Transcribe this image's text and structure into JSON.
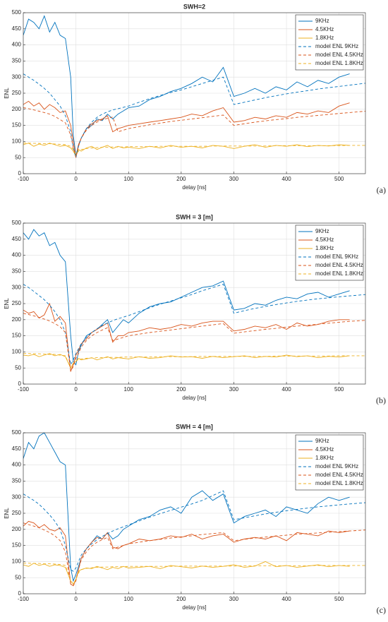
{
  "chart_data": [
    {
      "type": "line",
      "title": "SWH=2",
      "xlabel": "delay [ns]",
      "ylabel": "ENL",
      "panel_label": "(a)",
      "grid": true,
      "legend": "northeast",
      "xlim": [
        -100,
        550
      ],
      "ylim": [
        0,
        500
      ],
      "xticks": [
        -100,
        0,
        100,
        200,
        300,
        400,
        500
      ],
      "yticks": [
        0,
        50,
        100,
        150,
        200,
        250,
        300,
        350,
        400,
        450,
        500
      ],
      "x": [
        -100,
        -90,
        -80,
        -70,
        -60,
        -50,
        -40,
        -30,
        -20,
        -10,
        -5,
        0,
        5,
        10,
        20,
        30,
        40,
        50,
        60,
        70,
        80,
        90,
        100,
        120,
        140,
        160,
        180,
        200,
        220,
        240,
        260,
        280,
        300,
        320,
        340,
        360,
        380,
        400,
        420,
        440,
        460,
        480,
        500,
        520,
        550
      ],
      "series": [
        {
          "name": "9KHz",
          "color": "#0072bd",
          "dashed": false,
          "values": [
            430,
            480,
            470,
            450,
            490,
            440,
            470,
            430,
            420,
            300,
            120,
            55,
            90,
            110,
            140,
            150,
            170,
            165,
            185,
            170,
            185,
            195,
            205,
            210,
            230,
            240,
            255,
            265,
            280,
            300,
            285,
            330,
            240,
            250,
            265,
            250,
            270,
            260,
            285,
            270,
            290,
            280,
            300,
            310,
            null
          ]
        },
        {
          "name": "4.5KHz",
          "color": "#d95319",
          "dashed": false,
          "values": [
            215,
            225,
            210,
            220,
            200,
            215,
            205,
            190,
            195,
            150,
            100,
            50,
            90,
            110,
            140,
            155,
            165,
            170,
            180,
            130,
            140,
            145,
            150,
            155,
            160,
            165,
            170,
            175,
            185,
            180,
            195,
            205,
            160,
            165,
            175,
            170,
            180,
            175,
            190,
            185,
            195,
            190,
            210,
            220,
            null
          ]
        },
        {
          "name": "1.8KHz",
          "color": "#edb120",
          "dashed": false,
          "values": [
            90,
            95,
            85,
            92,
            88,
            95,
            90,
            85,
            88,
            80,
            70,
            55,
            75,
            70,
            80,
            85,
            75,
            82,
            88,
            78,
            85,
            80,
            82,
            78,
            85,
            80,
            88,
            82,
            85,
            80,
            88,
            85,
            78,
            85,
            90,
            82,
            88,
            85,
            90,
            84,
            88,
            86,
            90,
            88,
            null
          ]
        },
        {
          "name": "model ENL 9KHz",
          "color": "#0072bd",
          "dashed": true,
          "values": [
            310,
            300,
            290,
            278,
            265,
            250,
            230,
            210,
            180,
            130,
            80,
            50,
            85,
            110,
            140,
            160,
            175,
            185,
            192,
            198,
            202,
            206,
            210,
            222,
            233,
            243,
            252,
            260,
            270,
            280,
            290,
            300,
            215,
            222,
            229,
            236,
            242,
            248,
            253,
            258,
            263,
            267,
            271,
            275,
            281
          ]
        },
        {
          "name": "model ENL 4.5KHz",
          "color": "#d95319",
          "dashed": true,
          "values": [
            205,
            202,
            198,
            194,
            190,
            185,
            178,
            168,
            158,
            120,
            80,
            50,
            85,
            110,
            135,
            150,
            160,
            168,
            172,
            176,
            130,
            135,
            140,
            146,
            152,
            157,
            162,
            166,
            170,
            174,
            178,
            182,
            150,
            155,
            160,
            164,
            168,
            171,
            175,
            178,
            181,
            184,
            187,
            190,
            194
          ]
        },
        {
          "name": "model ENL 1.8KHz",
          "color": "#edb120",
          "dashed": true,
          "values": [
            95,
            95,
            94,
            94,
            93,
            93,
            92,
            91,
            90,
            85,
            75,
            60,
            70,
            75,
            78,
            80,
            81,
            82,
            82,
            83,
            83,
            83,
            84,
            84,
            84,
            85,
            85,
            85,
            85,
            85,
            86,
            86,
            86,
            86,
            86,
            86,
            87,
            87,
            87,
            87,
            87,
            87,
            87,
            88,
            88
          ]
        }
      ]
    },
    {
      "type": "line",
      "title": "SWH = 3 [m]",
      "xlabel": "delay [ns]",
      "ylabel": "ENL",
      "panel_label": "(b)",
      "grid": true,
      "legend": "northeast",
      "xlim": [
        -100,
        550
      ],
      "ylim": [
        0,
        500
      ],
      "xticks": [
        -100,
        0,
        100,
        200,
        300,
        400,
        500
      ],
      "yticks": [
        0,
        50,
        100,
        150,
        200,
        250,
        300,
        350,
        400,
        450,
        500
      ],
      "x": [
        -100,
        -90,
        -80,
        -70,
        -60,
        -50,
        -40,
        -30,
        -20,
        -10,
        -5,
        0,
        5,
        10,
        20,
        30,
        40,
        50,
        60,
        70,
        80,
        90,
        100,
        120,
        140,
        160,
        180,
        200,
        220,
        240,
        260,
        280,
        300,
        320,
        340,
        360,
        380,
        400,
        420,
        440,
        460,
        480,
        500,
        520,
        550
      ],
      "series": [
        {
          "name": "9KHz",
          "color": "#0072bd",
          "dashed": false,
          "values": [
            470,
            450,
            480,
            460,
            470,
            430,
            440,
            400,
            380,
            150,
            70,
            60,
            100,
            120,
            150,
            160,
            170,
            185,
            200,
            160,
            180,
            200,
            190,
            220,
            240,
            250,
            255,
            270,
            285,
            300,
            305,
            320,
            230,
            235,
            250,
            245,
            260,
            270,
            265,
            280,
            285,
            270,
            280,
            290,
            null
          ]
        },
        {
          "name": "4.5KHz",
          "color": "#d95319",
          "dashed": false,
          "values": [
            230,
            220,
            225,
            205,
            215,
            250,
            195,
            210,
            190,
            40,
            60,
            90,
            105,
            125,
            140,
            160,
            170,
            180,
            190,
            130,
            150,
            150,
            160,
            165,
            175,
            170,
            175,
            185,
            180,
            190,
            195,
            195,
            165,
            170,
            180,
            175,
            185,
            170,
            190,
            180,
            185,
            195,
            200,
            200,
            null
          ]
        },
        {
          "name": "1.8KHz",
          "color": "#edb120",
          "dashed": false,
          "values": [
            90,
            88,
            92,
            85,
            90,
            95,
            88,
            92,
            85,
            50,
            65,
            70,
            80,
            75,
            78,
            82,
            75,
            80,
            85,
            78,
            82,
            80,
            78,
            85,
            80,
            82,
            88,
            84,
            85,
            80,
            86,
            82,
            85,
            88,
            82,
            86,
            84,
            90,
            85,
            88,
            82,
            86,
            84,
            88,
            null
          ]
        },
        {
          "name": "model ENL 9KHz",
          "color": "#0072bd",
          "dashed": true,
          "values": [
            310,
            300,
            288,
            275,
            262,
            245,
            225,
            200,
            160,
            60,
            75,
            95,
            110,
            125,
            145,
            160,
            172,
            182,
            190,
            197,
            203,
            208,
            213,
            225,
            237,
            248,
            258,
            268,
            278,
            290,
            300,
            310,
            220,
            228,
            235,
            241,
            247,
            252,
            257,
            261,
            265,
            268,
            271,
            274,
            278
          ]
        },
        {
          "name": "model ENL 4.5KHz",
          "color": "#d95319",
          "dashed": true,
          "values": [
            220,
            216,
            212,
            207,
            202,
            196,
            188,
            178,
            160,
            40,
            55,
            80,
            95,
            115,
            135,
            150,
            160,
            168,
            175,
            135,
            140,
            145,
            150,
            155,
            160,
            164,
            168,
            172,
            176,
            180,
            184,
            188,
            158,
            162,
            166,
            170,
            173,
            177,
            180,
            183,
            186,
            189,
            192,
            195,
            198
          ]
        },
        {
          "name": "model ENL 1.8KHz",
          "color": "#edb120",
          "dashed": true,
          "values": [
            95,
            95,
            94,
            94,
            93,
            92,
            92,
            90,
            88,
            50,
            65,
            72,
            76,
            78,
            80,
            81,
            82,
            82,
            83,
            83,
            83,
            84,
            84,
            84,
            84,
            85,
            85,
            85,
            85,
            86,
            86,
            86,
            86,
            86,
            86,
            86,
            87,
            87,
            87,
            87,
            87,
            87,
            88,
            88,
            88
          ]
        }
      ]
    },
    {
      "type": "line",
      "title": "SWH = 4 [m]",
      "xlabel": "delay [ns]",
      "ylabel": "ENL",
      "panel_label": "(c)",
      "grid": true,
      "legend": "northeast",
      "xlim": [
        -100,
        550
      ],
      "ylim": [
        0,
        500
      ],
      "xticks": [
        -100,
        0,
        100,
        200,
        300,
        400,
        500
      ],
      "yticks": [
        0,
        50,
        100,
        150,
        200,
        250,
        300,
        350,
        400,
        450,
        500
      ],
      "x": [
        -100,
        -90,
        -80,
        -70,
        -60,
        -50,
        -40,
        -30,
        -20,
        -10,
        -5,
        0,
        5,
        10,
        20,
        30,
        40,
        50,
        60,
        70,
        80,
        90,
        100,
        120,
        140,
        160,
        180,
        200,
        220,
        240,
        260,
        280,
        300,
        320,
        340,
        360,
        380,
        400,
        420,
        440,
        460,
        480,
        500,
        520,
        550
      ],
      "series": [
        {
          "name": "9KHz",
          "color": "#0072bd",
          "dashed": false,
          "values": [
            420,
            470,
            450,
            490,
            500,
            470,
            440,
            410,
            400,
            80,
            40,
            60,
            85,
            110,
            140,
            160,
            180,
            170,
            190,
            170,
            180,
            200,
            210,
            230,
            240,
            260,
            270,
            250,
            300,
            320,
            290,
            310,
            220,
            240,
            250,
            260,
            240,
            270,
            260,
            250,
            280,
            300,
            290,
            300,
            null
          ]
        },
        {
          "name": "4.5KHz",
          "color": "#d95319",
          "dashed": false,
          "values": [
            210,
            225,
            220,
            205,
            215,
            200,
            195,
            205,
            180,
            30,
            25,
            45,
            75,
            110,
            140,
            160,
            175,
            170,
            190,
            145,
            140,
            150,
            155,
            170,
            165,
            170,
            180,
            175,
            185,
            170,
            180,
            185,
            160,
            170,
            175,
            170,
            180,
            165,
            190,
            185,
            180,
            195,
            190,
            195,
            null
          ]
        },
        {
          "name": "1.8KHz",
          "color": "#edb120",
          "dashed": false,
          "values": [
            90,
            85,
            95,
            88,
            92,
            85,
            90,
            88,
            82,
            40,
            30,
            45,
            70,
            75,
            80,
            78,
            85,
            80,
            75,
            82,
            78,
            85,
            80,
            82,
            85,
            78,
            88,
            84,
            80,
            86,
            82,
            85,
            90,
            82,
            86,
            100,
            84,
            88,
            82,
            86,
            90,
            84,
            88,
            85,
            null
          ]
        },
        {
          "name": "model ENL 9KHz",
          "color": "#0072bd",
          "dashed": true,
          "values": [
            310,
            300,
            290,
            278,
            262,
            245,
            225,
            200,
            150,
            75,
            70,
            80,
            100,
            120,
            140,
            155,
            168,
            178,
            187,
            195,
            202,
            208,
            214,
            226,
            238,
            249,
            259,
            269,
            279,
            290,
            305,
            320,
            230,
            236,
            242,
            248,
            253,
            258,
            262,
            266,
            270,
            273,
            276,
            279,
            283
          ]
        },
        {
          "name": "model ENL 4.5KHz",
          "color": "#d95319",
          "dashed": true,
          "values": [
            220,
            215,
            210,
            205,
            198,
            190,
            180,
            165,
            130,
            30,
            25,
            40,
            75,
            105,
            130,
            148,
            160,
            168,
            175,
            140,
            145,
            150,
            155,
            160,
            165,
            169,
            173,
            177,
            180,
            184,
            187,
            190,
            165,
            169,
            173,
            176,
            179,
            182,
            185,
            187,
            189,
            191,
            193,
            195,
            198
          ]
        },
        {
          "name": "model ENL 1.8KHz",
          "color": "#edb120",
          "dashed": true,
          "values": [
            95,
            95,
            94,
            94,
            93,
            93,
            92,
            91,
            88,
            40,
            30,
            45,
            65,
            75,
            79,
            81,
            82,
            83,
            83,
            84,
            84,
            84,
            85,
            85,
            85,
            85,
            85,
            86,
            86,
            86,
            86,
            86,
            86,
            87,
            87,
            87,
            87,
            87,
            87,
            87,
            88,
            88,
            88,
            88,
            88
          ]
        }
      ]
    }
  ]
}
